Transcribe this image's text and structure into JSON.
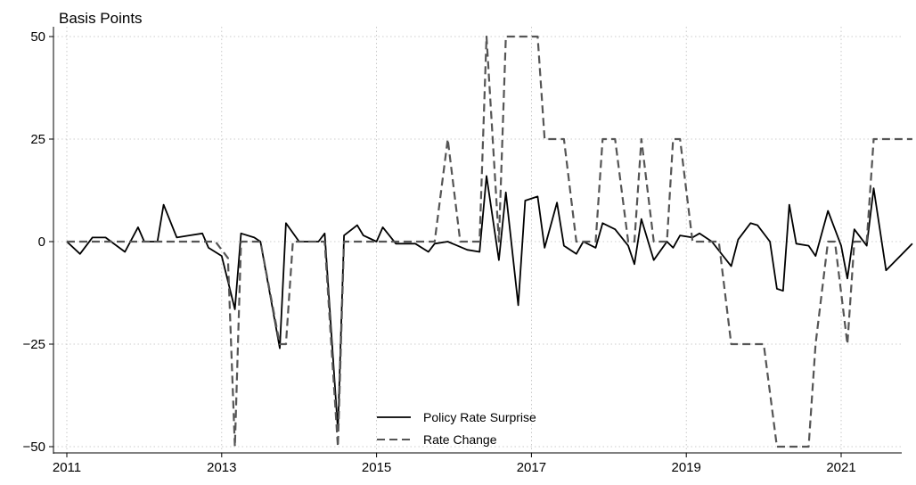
{
  "chart_data": {
    "type": "line",
    "ylabel": "Basis Points",
    "xlim": [
      2011.0,
      2021.92
    ],
    "ylim": [
      -52,
      52
    ],
    "x_ticks": [
      2011,
      2013,
      2015,
      2017,
      2019,
      2021
    ],
    "x_tick_labels": [
      "2011",
      "2013",
      "2015",
      "2017",
      "2019",
      "2021"
    ],
    "y_ticks": [
      -50,
      -25,
      0,
      25,
      50
    ],
    "y_tick_labels": [
      "−50",
      "−25",
      "0",
      "25",
      "50"
    ],
    "grid": true,
    "legend_position": "bottom-center",
    "series": [
      {
        "name": "Policy Rate Surprise",
        "style": "solid",
        "color": "#000000",
        "points": [
          [
            2011.0,
            0
          ],
          [
            2011.17,
            -3
          ],
          [
            2011.33,
            1
          ],
          [
            2011.5,
            1
          ],
          [
            2011.75,
            -2.5
          ],
          [
            2011.92,
            3.5
          ],
          [
            2012.0,
            0
          ],
          [
            2012.17,
            0
          ],
          [
            2012.25,
            9
          ],
          [
            2012.42,
            1
          ],
          [
            2012.58,
            1.5
          ],
          [
            2012.75,
            2
          ],
          [
            2012.83,
            -1.5
          ],
          [
            2013.0,
            -3.5
          ],
          [
            2013.17,
            -16.5
          ],
          [
            2013.25,
            2
          ],
          [
            2013.42,
            1
          ],
          [
            2013.5,
            0
          ],
          [
            2013.75,
            -26
          ],
          [
            2013.83,
            4.5
          ],
          [
            2014.0,
            0
          ],
          [
            2014.25,
            0
          ],
          [
            2014.33,
            2
          ],
          [
            2014.5,
            -46
          ],
          [
            2014.58,
            1.5
          ],
          [
            2014.75,
            4
          ],
          [
            2014.83,
            1.5
          ],
          [
            2015.0,
            0
          ],
          [
            2015.08,
            3.5
          ],
          [
            2015.25,
            -0.5
          ],
          [
            2015.5,
            -0.5
          ],
          [
            2015.67,
            -2.5
          ],
          [
            2015.75,
            -0.5
          ],
          [
            2015.92,
            0
          ],
          [
            2016.17,
            -2
          ],
          [
            2016.33,
            -2.5
          ],
          [
            2016.42,
            16
          ],
          [
            2016.58,
            -4.5
          ],
          [
            2016.67,
            12
          ],
          [
            2016.83,
            -15.5
          ],
          [
            2016.92,
            10
          ],
          [
            2017.08,
            11
          ],
          [
            2017.17,
            -1.5
          ],
          [
            2017.33,
            9.5
          ],
          [
            2017.42,
            -1
          ],
          [
            2017.58,
            -3
          ],
          [
            2017.67,
            0
          ],
          [
            2017.83,
            -1.5
          ],
          [
            2017.92,
            4.5
          ],
          [
            2018.08,
            3
          ],
          [
            2018.25,
            -1
          ],
          [
            2018.33,
            -5.5
          ],
          [
            2018.42,
            5.5
          ],
          [
            2018.58,
            -4.5
          ],
          [
            2018.75,
            0
          ],
          [
            2018.83,
            -1.5
          ],
          [
            2018.92,
            1.5
          ],
          [
            2019.08,
            1
          ],
          [
            2019.17,
            2
          ],
          [
            2019.33,
            0
          ],
          [
            2019.58,
            -6
          ],
          [
            2019.67,
            0.5
          ],
          [
            2019.83,
            4.5
          ],
          [
            2019.92,
            4
          ],
          [
            2020.08,
            0
          ],
          [
            2020.17,
            -11.5
          ],
          [
            2020.25,
            -12
          ],
          [
            2020.33,
            9
          ],
          [
            2020.42,
            -0.5
          ],
          [
            2020.58,
            -1
          ],
          [
            2020.67,
            -3.5
          ],
          [
            2020.83,
            7.5
          ],
          [
            2021.0,
            -1
          ],
          [
            2021.08,
            -9
          ],
          [
            2021.17,
            3
          ],
          [
            2021.33,
            -1
          ],
          [
            2021.42,
            13
          ],
          [
            2021.58,
            -7
          ],
          [
            2021.92,
            -0.5
          ]
        ]
      },
      {
        "name": "Rate Change",
        "style": "dashed",
        "color": "#555555",
        "points": [
          [
            2011.0,
            0
          ],
          [
            2012.92,
            0
          ],
          [
            2013.08,
            -4
          ],
          [
            2013.17,
            -50
          ],
          [
            2013.25,
            0
          ],
          [
            2013.5,
            0
          ],
          [
            2013.75,
            -25
          ],
          [
            2013.83,
            -25
          ],
          [
            2013.92,
            0
          ],
          [
            2014.33,
            0
          ],
          [
            2014.5,
            -50
          ],
          [
            2014.58,
            0
          ],
          [
            2015.75,
            0
          ],
          [
            2015.92,
            25
          ],
          [
            2016.08,
            0
          ],
          [
            2016.33,
            0
          ],
          [
            2016.42,
            50
          ],
          [
            2016.58,
            0
          ],
          [
            2016.67,
            50
          ],
          [
            2017.08,
            50
          ],
          [
            2017.17,
            25
          ],
          [
            2017.42,
            25
          ],
          [
            2017.58,
            0
          ],
          [
            2017.83,
            0
          ],
          [
            2017.92,
            25
          ],
          [
            2018.08,
            25
          ],
          [
            2018.25,
            0
          ],
          [
            2018.33,
            0
          ],
          [
            2018.42,
            25
          ],
          [
            2018.58,
            0
          ],
          [
            2018.75,
            0
          ],
          [
            2018.83,
            25
          ],
          [
            2018.92,
            25
          ],
          [
            2019.08,
            0
          ],
          [
            2019.42,
            0
          ],
          [
            2019.58,
            -25
          ],
          [
            2019.75,
            -25
          ],
          [
            2020.0,
            -25
          ],
          [
            2020.17,
            -50
          ],
          [
            2020.58,
            -50
          ],
          [
            2020.67,
            -25
          ],
          [
            2020.83,
            0
          ],
          [
            2020.92,
            0
          ],
          [
            2021.08,
            -25
          ],
          [
            2021.17,
            0
          ],
          [
            2021.33,
            0
          ],
          [
            2021.42,
            25
          ],
          [
            2021.92,
            25
          ]
        ]
      }
    ]
  }
}
